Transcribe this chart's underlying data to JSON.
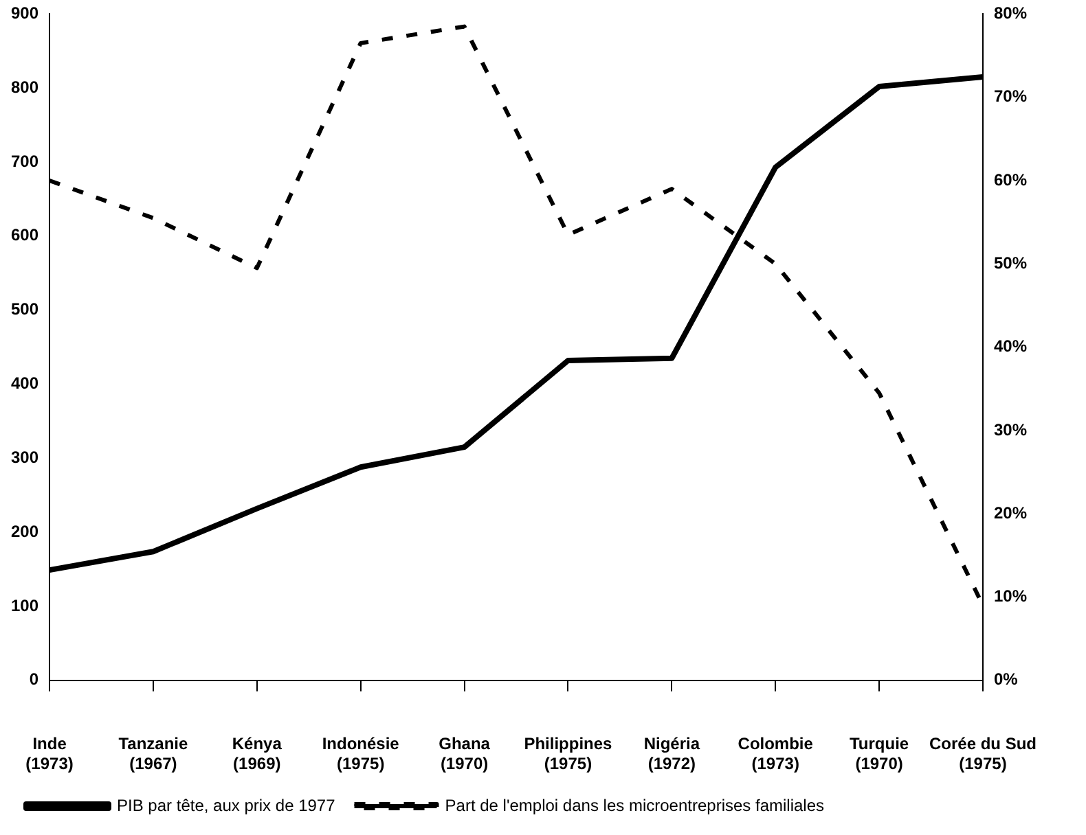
{
  "chart_data": {
    "type": "line",
    "categories": [
      "Inde (1973)",
      "Tanzanie (1967)",
      "Kénya (1969)",
      "Indonésie (1975)",
      "Ghana (1970)",
      "Philippines (1975)",
      "Nigéria (1972)",
      "Colombie (1973)",
      "Turquie (1970)",
      "Corée du Sud (1975)"
    ],
    "series": [
      {
        "name": "PIB par tête, aux prix de 1977",
        "color": "#000000",
        "line_style": "solid",
        "values": [
          149,
          174,
          232,
          288,
          315,
          432,
          435,
          693,
          802,
          815
        ]
      },
      {
        "name": "Part de l'emploi dans les microentreprises familiales",
        "color": "#000000",
        "line_style": "dashed",
        "axis": "y2",
        "values": [
          60,
          55.5,
          49.5,
          76.5,
          78.5,
          53.5,
          59,
          50,
          34.5,
          9
        ]
      }
    ],
    "ylim": [
      0,
      900
    ],
    "yticks": [
      0,
      100,
      200,
      300,
      400,
      500,
      600,
      700,
      800,
      900
    ],
    "y2lim": [
      0,
      80
    ],
    "y2ticks": [
      {
        "value": 0,
        "label": "0%"
      },
      {
        "value": 10,
        "label": "10%"
      },
      {
        "value": 20,
        "label": "20%"
      },
      {
        "value": 30,
        "label": "30%"
      },
      {
        "value": 40,
        "label": "40%"
      },
      {
        "value": 50,
        "label": "50%"
      },
      {
        "value": 60,
        "label": "60%"
      },
      {
        "value": 70,
        "label": "70%"
      },
      {
        "value": 80,
        "label": "80%"
      }
    ],
    "grid": false,
    "legend": "bottom left",
    "marker": "none"
  }
}
